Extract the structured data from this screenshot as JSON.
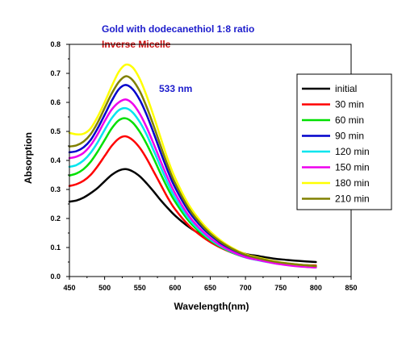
{
  "chart_data": {
    "type": "line",
    "title": "Gold with dodecanethiol 1:8 ratio",
    "subtitle": "Inverse Micelle",
    "annotation": "533 nm",
    "xlabel": "Wavelength(nm)",
    "ylabel": "Absorption",
    "xlim": [
      450,
      850
    ],
    "ylim": [
      0.0,
      0.8
    ],
    "xticks": [
      450,
      500,
      550,
      600,
      650,
      700,
      750,
      800,
      850
    ],
    "yticks": [
      0.0,
      0.1,
      0.2,
      0.3,
      0.4,
      0.5,
      0.6,
      0.7,
      0.8
    ],
    "grid": false,
    "legend_position": "right",
    "x": [
      450,
      460,
      470,
      480,
      490,
      500,
      510,
      520,
      530,
      540,
      550,
      560,
      570,
      580,
      590,
      600,
      620,
      640,
      660,
      680,
      700,
      720,
      740,
      760,
      780,
      800
    ],
    "series": [
      {
        "name": "initial",
        "color": "#000000",
        "values": [
          0.258,
          0.262,
          0.272,
          0.287,
          0.305,
          0.328,
          0.35,
          0.365,
          0.37,
          0.362,
          0.345,
          0.32,
          0.292,
          0.262,
          0.235,
          0.21,
          0.17,
          0.14,
          0.115,
          0.095,
          0.078,
          0.07,
          0.062,
          0.057,
          0.053,
          0.05
        ]
      },
      {
        "name": "30 min",
        "color": "#ff0000",
        "values": [
          0.312,
          0.318,
          0.33,
          0.35,
          0.38,
          0.415,
          0.45,
          0.475,
          0.483,
          0.47,
          0.443,
          0.405,
          0.36,
          0.315,
          0.27,
          0.232,
          0.175,
          0.135,
          0.105,
          0.083,
          0.067,
          0.058,
          0.05,
          0.044,
          0.04,
          0.038
        ]
      },
      {
        "name": "60 min",
        "color": "#00e000",
        "values": [
          0.348,
          0.355,
          0.37,
          0.395,
          0.43,
          0.47,
          0.51,
          0.538,
          0.545,
          0.53,
          0.498,
          0.455,
          0.405,
          0.352,
          0.302,
          0.258,
          0.19,
          0.143,
          0.109,
          0.084,
          0.066,
          0.056,
          0.047,
          0.041,
          0.036,
          0.033
        ]
      },
      {
        "name": "90 min",
        "color": "#0000cc",
        "values": [
          0.428,
          0.432,
          0.445,
          0.47,
          0.51,
          0.557,
          0.605,
          0.645,
          0.66,
          0.645,
          0.608,
          0.555,
          0.492,
          0.425,
          0.362,
          0.307,
          0.223,
          0.165,
          0.124,
          0.094,
          0.073,
          0.061,
          0.051,
          0.044,
          0.039,
          0.035
        ]
      },
      {
        "name": "120 min",
        "color": "#00e5ee",
        "values": [
          0.378,
          0.384,
          0.4,
          0.426,
          0.462,
          0.505,
          0.545,
          0.573,
          0.58,
          0.565,
          0.532,
          0.487,
          0.432,
          0.375,
          0.32,
          0.272,
          0.198,
          0.148,
          0.111,
          0.085,
          0.066,
          0.055,
          0.046,
          0.04,
          0.035,
          0.032
        ]
      },
      {
        "name": "150 min",
        "color": "#ee00ee",
        "values": [
          0.408,
          0.413,
          0.426,
          0.452,
          0.49,
          0.535,
          0.575,
          0.6,
          0.61,
          0.595,
          0.56,
          0.512,
          0.455,
          0.395,
          0.338,
          0.287,
          0.208,
          0.154,
          0.115,
          0.087,
          0.067,
          0.056,
          0.046,
          0.039,
          0.034,
          0.031
        ]
      },
      {
        "name": "180 min",
        "color": "#ffff00",
        "values": [
          0.495,
          0.49,
          0.492,
          0.51,
          0.55,
          0.6,
          0.655,
          0.705,
          0.73,
          0.72,
          0.68,
          0.62,
          0.55,
          0.475,
          0.402,
          0.34,
          0.245,
          0.18,
          0.134,
          0.1,
          0.077,
          0.064,
          0.053,
          0.045,
          0.04,
          0.036
        ]
      },
      {
        "name": "210 min",
        "color": "#808000",
        "values": [
          0.448,
          0.452,
          0.465,
          0.49,
          0.53,
          0.58,
          0.63,
          0.67,
          0.69,
          0.676,
          0.638,
          0.582,
          0.517,
          0.447,
          0.38,
          0.322,
          0.233,
          0.172,
          0.128,
          0.097,
          0.075,
          0.062,
          0.052,
          0.045,
          0.04,
          0.036
        ]
      }
    ]
  }
}
